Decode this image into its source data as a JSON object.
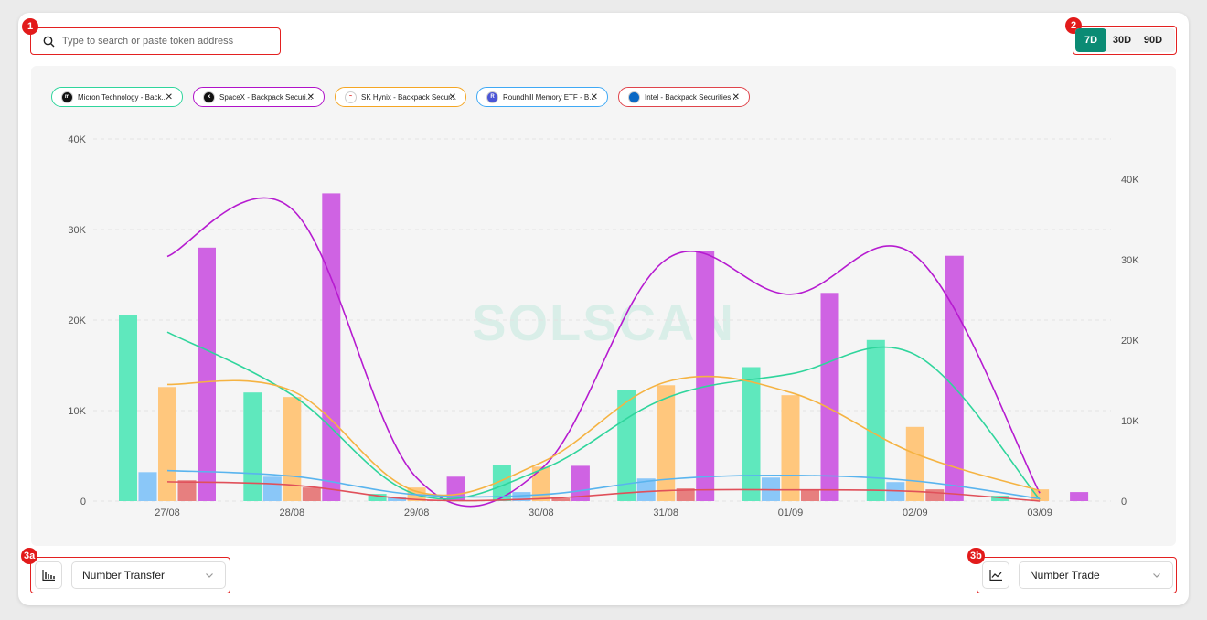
{
  "markers": {
    "search": "1",
    "range": "2",
    "left_control": "3a",
    "right_control": "3b"
  },
  "search": {
    "placeholder": "Type to search or paste token address"
  },
  "range_options": [
    {
      "label": "7D",
      "active": true
    },
    {
      "label": "30D",
      "active": false
    },
    {
      "label": "90D",
      "active": false
    }
  ],
  "watermark": "SOLSCAN",
  "tokens": [
    {
      "label": "Micron Technology - Back...",
      "color": "#2fd59c",
      "icon_color": "#111111",
      "icon_glyph": "m",
      "icon": "micron-logo-icon"
    },
    {
      "label": "SpaceX - Backpack Securi...",
      "color": "#b012c9",
      "icon_color": "#111111",
      "icon_glyph": "x",
      "icon": "spacex-logo-icon"
    },
    {
      "label": "SK Hynix - Backpack Secur...",
      "color": "#f5a623",
      "icon_color": "#ffffff",
      "icon_glyph": "~",
      "icon": "sk-hynix-logo-icon"
    },
    {
      "label": "Roundhill Memory ETF - B...",
      "color": "#3fa9f5",
      "icon_color": "#4b55d6",
      "icon_glyph": "R",
      "icon": "roundhill-logo-icon"
    },
    {
      "label": "Intel - Backpack Securities...",
      "color": "#e0444b",
      "icon_color": "#0a68c4",
      "icon_glyph": "intel",
      "icon": "intel-logo-icon"
    }
  ],
  "bar_control": {
    "icon": "bar-chart-icon",
    "selected": "Number Transfer"
  },
  "line_control": {
    "icon": "line-chart-icon",
    "selected": "Number Trade"
  },
  "chart_data": {
    "type": "bar",
    "categories": [
      "27/08",
      "28/08",
      "29/08",
      "30/08",
      "31/08",
      "01/09",
      "02/09",
      "03/09"
    ],
    "left_axis": {
      "ticks": [
        "0",
        "10K",
        "20K",
        "30K",
        "40K"
      ],
      "ylim": [
        0,
        40000
      ]
    },
    "right_axis": {
      "ticks": [
        "0",
        "10K",
        "20K",
        "30K",
        "40K"
      ],
      "ylim": [
        0,
        40000
      ]
    },
    "grid": true,
    "bar_series": [
      {
        "values": [
          20600,
          12000,
          800,
          4000,
          12300,
          14800,
          17800,
          600
        ],
        "color": "#5fe8bd"
      },
      {
        "values": [
          3200,
          2700,
          400,
          1000,
          2500,
          2600,
          2100,
          0
        ],
        "color": "#8ac7f8"
      },
      {
        "values": [
          12600,
          11500,
          1500,
          3800,
          12800,
          11700,
          8200,
          1300
        ],
        "color": "#ffc77d"
      },
      {
        "values": [
          2300,
          1500,
          100,
          300,
          1400,
          1300,
          1300,
          0
        ],
        "color": "#e77f7f"
      },
      {
        "values": [
          28000,
          34000,
          2700,
          3900,
          27600,
          23000,
          27100,
          1000
        ],
        "color": "#cf63e3"
      }
    ],
    "line_series": [
      {
        "values": [
          30400,
          36300,
          2900,
          4000,
          30000,
          25700,
          30500,
          1000
        ],
        "color": "#b61bd0"
      },
      {
        "values": [
          21000,
          13200,
          800,
          3900,
          12800,
          15800,
          18200,
          200
        ],
        "color": "#2fd59c"
      },
      {
        "values": [
          14500,
          13700,
          1200,
          4800,
          14800,
          13500,
          5900,
          1300
        ],
        "color": "#f5b342"
      },
      {
        "values": [
          3800,
          3100,
          800,
          800,
          2700,
          3200,
          2500,
          300
        ],
        "color": "#59b4ee"
      },
      {
        "values": [
          2400,
          2000,
          200,
          300,
          1300,
          1400,
          1200,
          0
        ],
        "color": "#e0505a"
      }
    ]
  }
}
